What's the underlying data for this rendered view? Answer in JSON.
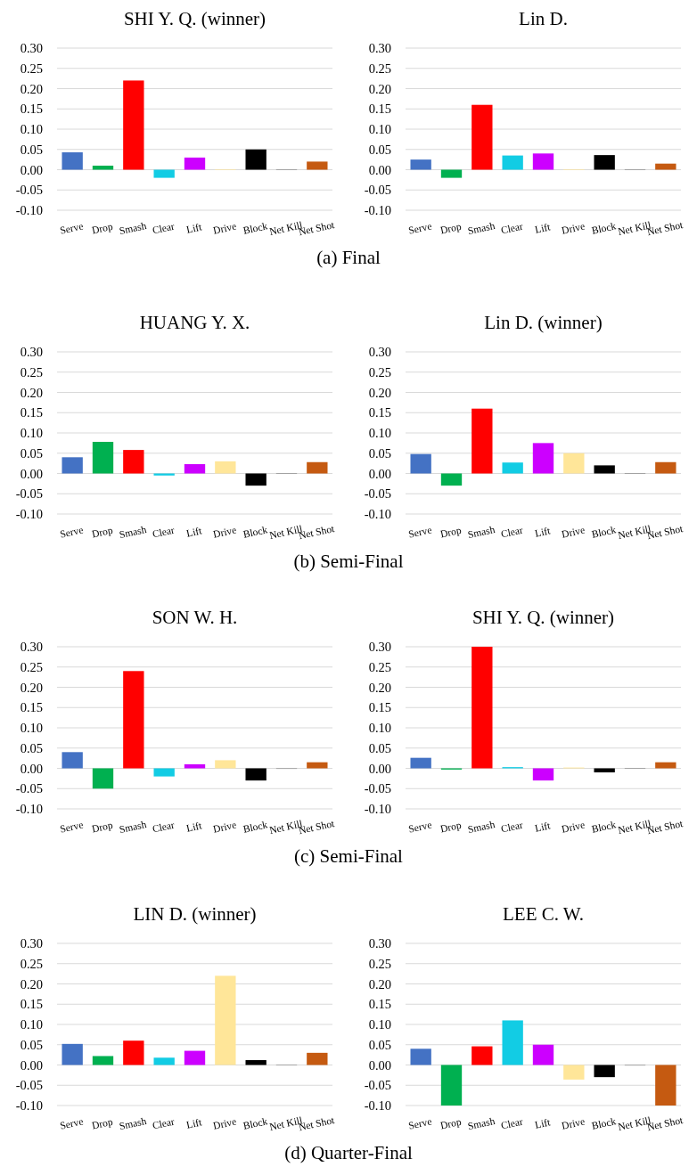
{
  "chart_data": [
    {
      "type": "bar",
      "title": "SHI Y. Q. (winner)",
      "annotations": [
        "(a) Final"
      ],
      "categories": [
        "Serve",
        "Drop",
        "Smash",
        "Clear",
        "Lift",
        "Drive",
        "Block",
        "Net Kill",
        "Net Shot"
      ],
      "colors": [
        "#4472c4",
        "#00b050",
        "#ff0000",
        "#12cce4",
        "#cc00ff",
        "#ffe699",
        "#000000",
        "#7f7f7f",
        "#c55a11"
      ],
      "values": [
        0.043,
        0.01,
        0.22,
        -0.02,
        0.03,
        0.001,
        0.05,
        0.001,
        0.02
      ],
      "ylim": [
        -0.1,
        0.3
      ],
      "yticks": [
        {
          "value": -0.1,
          "label": "-0.10"
        },
        {
          "value": -0.05,
          "label": "-0.05"
        },
        {
          "value": 0,
          "label": "0.00"
        },
        {
          "value": 0.05,
          "label": "0.05"
        },
        {
          "value": 0.1,
          "label": "0.10"
        },
        {
          "value": 0.15,
          "label": "0.15"
        },
        {
          "value": 0.2,
          "label": "0.20"
        },
        {
          "value": 0.25,
          "label": "0.25"
        },
        {
          "value": 0.3,
          "label": "0.30"
        }
      ],
      "grid": "y"
    },
    {
      "type": "bar",
      "title": "Lin D.",
      "categories": [
        "Serve",
        "Drop",
        "Smash",
        "Clear",
        "Lift",
        "Drive",
        "Block",
        "Net Kill",
        "Net Shot"
      ],
      "colors": [
        "#4472c4",
        "#00b050",
        "#ff0000",
        "#12cce4",
        "#cc00ff",
        "#ffe699",
        "#000000",
        "#7f7f7f",
        "#c55a11"
      ],
      "values": [
        0.025,
        -0.02,
        0.16,
        0.035,
        0.04,
        0.001,
        0.036,
        0.001,
        0.015
      ],
      "ylim": [
        -0.1,
        0.3
      ],
      "yticks": [
        {
          "value": -0.1,
          "label": "-0.10"
        },
        {
          "value": -0.05,
          "label": "-0.05"
        },
        {
          "value": 0,
          "label": "0.00"
        },
        {
          "value": 0.05,
          "label": "0.05"
        },
        {
          "value": 0.1,
          "label": "0.10"
        },
        {
          "value": 0.15,
          "label": "0.15"
        },
        {
          "value": 0.2,
          "label": "0.20"
        },
        {
          "value": 0.25,
          "label": "0.25"
        },
        {
          "value": 0.3,
          "label": "0.30"
        }
      ],
      "grid": "y"
    },
    {
      "type": "bar",
      "title": "HUANG Y. X.",
      "annotations": [
        "(b) Semi-Final"
      ],
      "categories": [
        "Serve",
        "Drop",
        "Smash",
        "Clear",
        "Lift",
        "Drive",
        "Block",
        "Net Kill",
        "Net Shot"
      ],
      "colors": [
        "#4472c4",
        "#00b050",
        "#ff0000",
        "#12cce4",
        "#cc00ff",
        "#ffe699",
        "#000000",
        "#7f7f7f",
        "#c55a11"
      ],
      "values": [
        0.04,
        0.078,
        0.058,
        -0.005,
        0.023,
        0.03,
        -0.03,
        0.001,
        0.028
      ],
      "ylim": [
        -0.1,
        0.3
      ],
      "yticks": [
        {
          "value": -0.1,
          "label": "-0.10"
        },
        {
          "value": -0.05,
          "label": "-0.05"
        },
        {
          "value": 0,
          "label": "0.00"
        },
        {
          "value": 0.05,
          "label": "0.05"
        },
        {
          "value": 0.1,
          "label": "0.10"
        },
        {
          "value": 0.15,
          "label": "0.15"
        },
        {
          "value": 0.2,
          "label": "0.20"
        },
        {
          "value": 0.25,
          "label": "0.25"
        },
        {
          "value": 0.3,
          "label": "0.30"
        }
      ],
      "grid": "y"
    },
    {
      "type": "bar",
      "title": "Lin D. (winner)",
      "categories": [
        "Serve",
        "Drop",
        "Smash",
        "Clear",
        "Lift",
        "Drive",
        "Block",
        "Net Kill",
        "Net Shot"
      ],
      "colors": [
        "#4472c4",
        "#00b050",
        "#ff0000",
        "#12cce4",
        "#cc00ff",
        "#ffe699",
        "#000000",
        "#7f7f7f",
        "#c55a11"
      ],
      "values": [
        0.048,
        -0.03,
        0.16,
        0.027,
        0.075,
        0.05,
        0.02,
        0.001,
        0.028
      ],
      "ylim": [
        -0.1,
        0.3
      ],
      "yticks": [
        {
          "value": -0.1,
          "label": "-0.10"
        },
        {
          "value": -0.05,
          "label": "-0.05"
        },
        {
          "value": 0,
          "label": "0.00"
        },
        {
          "value": 0.05,
          "label": "0.05"
        },
        {
          "value": 0.1,
          "label": "0.10"
        },
        {
          "value": 0.15,
          "label": "0.15"
        },
        {
          "value": 0.2,
          "label": "0.20"
        },
        {
          "value": 0.25,
          "label": "0.25"
        },
        {
          "value": 0.3,
          "label": "0.30"
        }
      ],
      "grid": "y"
    },
    {
      "type": "bar",
      "title": "SON W. H.",
      "annotations": [
        "(c) Semi-Final"
      ],
      "categories": [
        "Serve",
        "Drop",
        "Smash",
        "Clear",
        "Lift",
        "Drive",
        "Block",
        "Net Kill",
        "Net Shot"
      ],
      "colors": [
        "#4472c4",
        "#00b050",
        "#ff0000",
        "#12cce4",
        "#cc00ff",
        "#ffe699",
        "#000000",
        "#7f7f7f",
        "#c55a11"
      ],
      "values": [
        0.04,
        -0.05,
        0.24,
        -0.02,
        0.01,
        0.02,
        -0.03,
        0,
        0.015
      ],
      "ylim": [
        -0.1,
        0.3
      ],
      "yticks": [
        {
          "value": -0.1,
          "label": "-0.10"
        },
        {
          "value": -0.05,
          "label": "-0.05"
        },
        {
          "value": 0,
          "label": "0.00"
        },
        {
          "value": 0.05,
          "label": "0.05"
        },
        {
          "value": 0.1,
          "label": "0.10"
        },
        {
          "value": 0.15,
          "label": "0.15"
        },
        {
          "value": 0.2,
          "label": "0.20"
        },
        {
          "value": 0.25,
          "label": "0.25"
        },
        {
          "value": 0.3,
          "label": "0.30"
        }
      ],
      "grid": "y"
    },
    {
      "type": "bar",
      "title": "SHI Y. Q. (winner)",
      "categories": [
        "Serve",
        "Drop",
        "Smash",
        "Clear",
        "Lift",
        "Drive",
        "Block",
        "Net Kill",
        "Net Shot"
      ],
      "colors": [
        "#4472c4",
        "#00b050",
        "#ff0000",
        "#12cce4",
        "#cc00ff",
        "#ffe699",
        "#000000",
        "#7f7f7f",
        "#c55a11"
      ],
      "values": [
        0.026,
        -0.003,
        0.3,
        0.003,
        -0.03,
        0.002,
        -0.01,
        0.001,
        0.015
      ],
      "ylim": [
        -0.1,
        0.3
      ],
      "yticks": [
        {
          "value": -0.1,
          "label": "-0.10"
        },
        {
          "value": -0.05,
          "label": "-0.05"
        },
        {
          "value": 0,
          "label": "0.00"
        },
        {
          "value": 0.05,
          "label": "0.05"
        },
        {
          "value": 0.1,
          "label": "0.10"
        },
        {
          "value": 0.15,
          "label": "0.15"
        },
        {
          "value": 0.2,
          "label": "0.20"
        },
        {
          "value": 0.25,
          "label": "0.25"
        },
        {
          "value": 0.3,
          "label": "0.30"
        }
      ],
      "grid": "y"
    },
    {
      "type": "bar",
      "title": "LIN D. (winner)",
      "annotations": [
        "(d) Quarter-Final"
      ],
      "categories": [
        "Serve",
        "Drop",
        "Smash",
        "Clear",
        "Lift",
        "Drive",
        "Block",
        "Net Kill",
        "Net Shot"
      ],
      "colors": [
        "#4472c4",
        "#00b050",
        "#ff0000",
        "#12cce4",
        "#cc00ff",
        "#ffe699",
        "#000000",
        "#7f7f7f",
        "#c55a11"
      ],
      "values": [
        0.052,
        0.022,
        0.06,
        0.018,
        0.035,
        0.22,
        0.012,
        0.001,
        0.03
      ],
      "ylim": [
        -0.1,
        0.3
      ],
      "yticks": [
        {
          "value": -0.1,
          "label": "-0.10"
        },
        {
          "value": -0.05,
          "label": "-0.05"
        },
        {
          "value": 0,
          "label": "0.00"
        },
        {
          "value": 0.05,
          "label": "0.05"
        },
        {
          "value": 0.1,
          "label": "0.10"
        },
        {
          "value": 0.15,
          "label": "0.15"
        },
        {
          "value": 0.2,
          "label": "0.20"
        },
        {
          "value": 0.25,
          "label": "0.25"
        },
        {
          "value": 0.3,
          "label": "0.30"
        }
      ],
      "grid": "y"
    },
    {
      "type": "bar",
      "title": "LEE C. W.",
      "categories": [
        "Serve",
        "Drop",
        "Smash",
        "Clear",
        "Lift",
        "Drive",
        "Block",
        "Net Kill",
        "Net Shot"
      ],
      "colors": [
        "#4472c4",
        "#00b050",
        "#ff0000",
        "#12cce4",
        "#cc00ff",
        "#ffe699",
        "#000000",
        "#7f7f7f",
        "#c55a11"
      ],
      "values": [
        0.04,
        -0.1,
        0.046,
        0.11,
        0.05,
        -0.036,
        -0.03,
        0,
        -0.1
      ],
      "ylim": [
        -0.1,
        0.3
      ],
      "yticks": [
        {
          "value": -0.1,
          "label": "-0.10"
        },
        {
          "value": -0.05,
          "label": "-0.05"
        },
        {
          "value": 0,
          "label": "0.00"
        },
        {
          "value": 0.05,
          "label": "0.05"
        },
        {
          "value": 0.1,
          "label": "0.10"
        },
        {
          "value": 0.15,
          "label": "0.15"
        },
        {
          "value": 0.2,
          "label": "0.20"
        },
        {
          "value": 0.25,
          "label": "0.25"
        },
        {
          "value": 0.3,
          "label": "0.30"
        }
      ],
      "grid": "y"
    }
  ]
}
